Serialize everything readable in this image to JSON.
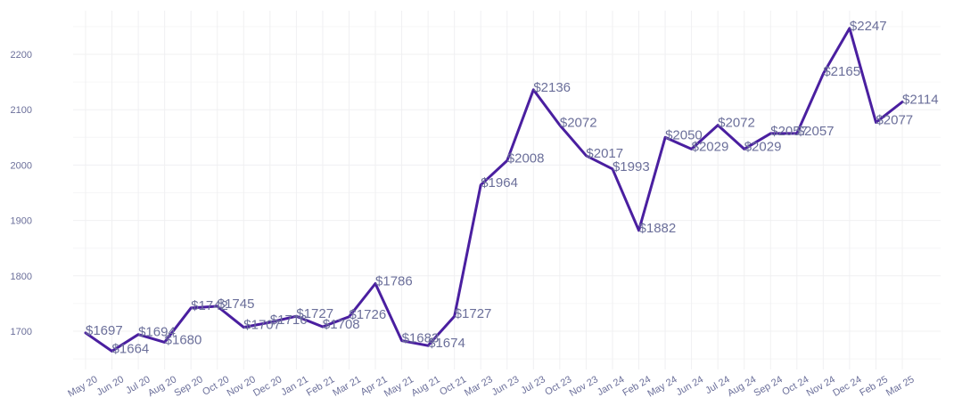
{
  "chart_data": {
    "type": "line",
    "title": "",
    "xlabel": "",
    "ylabel": "",
    "categories": [
      "May 20",
      "Jun 20",
      "Jul 20",
      "Aug 20",
      "Sep 20",
      "Oct 20",
      "Nov 20",
      "Dec 20",
      "Jan 21",
      "Feb 21",
      "Mar 21",
      "Apr 21",
      "May 21",
      "Aug 21",
      "Oct 21",
      "Mar 23",
      "Jun 23",
      "Jul 23",
      "Oct 23",
      "Nov 23",
      "Jan 24",
      "Feb 24",
      "May 24",
      "Jun 24",
      "Jul 24",
      "Aug 24",
      "Sep 24",
      "Oct 24",
      "Nov 24",
      "Dec 24",
      "Feb 25",
      "Mar 25"
    ],
    "series": [
      {
        "values": [
          1697,
          1664,
          1694,
          1680,
          1742,
          1745,
          1707,
          1716,
          1727,
          1708,
          1726,
          1786,
          1683,
          1674,
          1727,
          1964,
          2008,
          2136,
          2072,
          2017,
          1993,
          1882,
          2050,
          2029,
          2072,
          2029,
          2057,
          2057,
          2165,
          2247,
          2077,
          2114
        ],
        "labels": [
          "$1697",
          "$1664",
          "$1694",
          "$1680",
          "$1742",
          "$1745",
          "$1707",
          "$1716",
          "$1727",
          "$1708",
          "$1726",
          "$1786",
          "$1683",
          "$1674",
          "$1727",
          "$1964",
          "$2008",
          "$2136",
          "$2072",
          "$2017",
          "$1993",
          "$1882",
          "$2050",
          "$2029",
          "$2072",
          "$2029",
          "$2057",
          "$2057",
          "$2165",
          "$2247",
          "$2077",
          "$2114"
        ],
        "color": "#4a1fa0"
      }
    ],
    "yticks": [
      1700,
      1800,
      1900,
      2000,
      2100,
      2200
    ],
    "ylim": [
      1630,
      2270
    ],
    "grid": true,
    "legend": "none"
  }
}
